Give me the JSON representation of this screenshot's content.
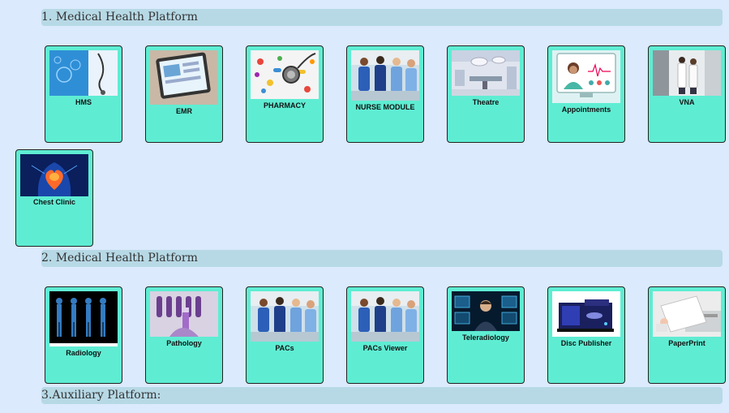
{
  "sections": [
    {
      "title": "1. Medical Health Platform",
      "tiles": [
        {
          "label": "HMS",
          "icon": "hms-icon"
        },
        {
          "label": "EMR",
          "icon": "emr-tablet-icon"
        },
        {
          "label": "PHARMACY",
          "icon": "pills-stethoscope-icon"
        },
        {
          "label": "NURSE MODULE",
          "icon": "nurses-icon"
        },
        {
          "label": "Theatre",
          "icon": "operating-room-icon"
        },
        {
          "label": "Appointments",
          "icon": "doctor-appointment-icon"
        },
        {
          "label": "VNA",
          "icon": "doctors-hallway-icon"
        },
        {
          "label": "Chest Clinic",
          "icon": "heart-anatomy-icon"
        }
      ]
    },
    {
      "title": "2. Medical Health Platform",
      "tiles": [
        {
          "label": "Radiology",
          "icon": "xray-bodies-icon"
        },
        {
          "label": "Pathology",
          "icon": "test-tubes-icon"
        },
        {
          "label": "PACs",
          "icon": "nurses-icon"
        },
        {
          "label": "PACs Viewer",
          "icon": "nurses-icon"
        },
        {
          "label": "Teleradiology",
          "icon": "teleradiology-screens-icon"
        },
        {
          "label": "Disc Publisher",
          "icon": "disc-publisher-icon"
        },
        {
          "label": "PaperPrint",
          "icon": "paper-printer-icon"
        }
      ]
    },
    {
      "title": "3.Auxiliary Platform:"
    }
  ]
}
